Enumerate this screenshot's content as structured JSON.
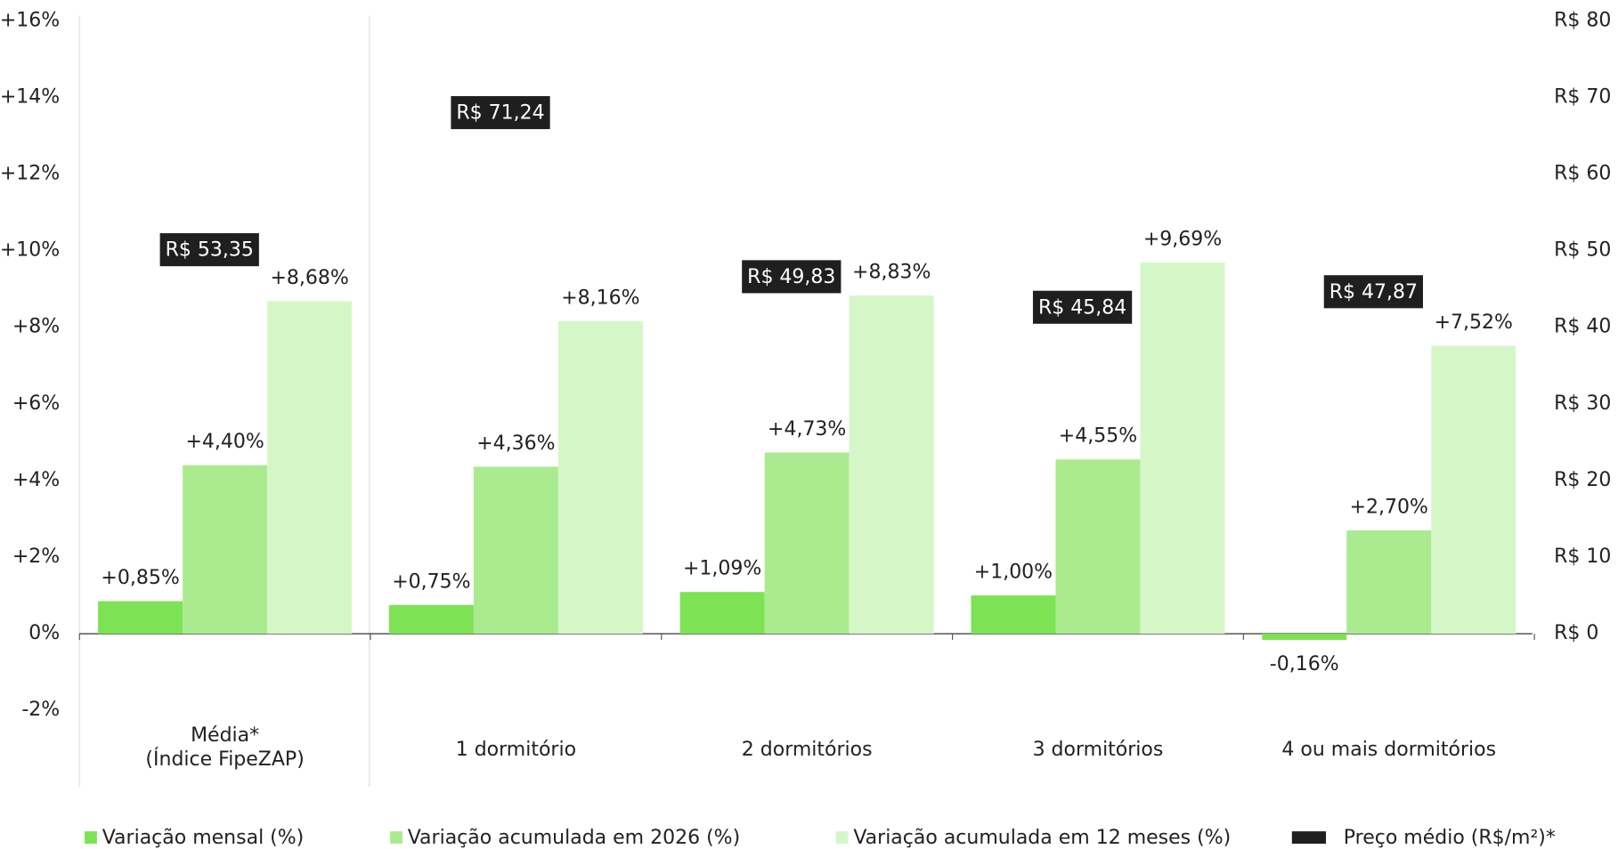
{
  "chart_data": {
    "type": "bar",
    "categories": [
      "Média*\n(Índice FipeZAP)",
      "1 dormitório",
      "2 dormitórios",
      "3 dormitórios",
      "4 ou mais dormitórios"
    ],
    "series": [
      {
        "name": "Variação mensal (%)",
        "color": "#7de354",
        "values": [
          0.85,
          0.75,
          1.09,
          1.0,
          -0.16
        ],
        "value_labels": [
          "+0,85%",
          "+0,75%",
          "+1,09%",
          "+1,00%",
          "-0,16%"
        ]
      },
      {
        "name": "Variação acumulada em 2026 (%)",
        "color": "#abeb90",
        "values": [
          4.4,
          4.36,
          4.73,
          4.55,
          2.7
        ],
        "value_labels": [
          "+4,40%",
          "+4,36%",
          "+4,73%",
          "+4,55%",
          "+2,70%"
        ]
      },
      {
        "name": "Variação acumulada em 12 meses (%)",
        "color": "#d5f7c8",
        "values": [
          8.68,
          8.16,
          8.83,
          9.69,
          7.52
        ],
        "value_labels": [
          "+8,68%",
          "+8,16%",
          "+8,83%",
          "+9,69%",
          "+7,52%"
        ]
      },
      {
        "name": "Preço médio (R$/m²)*",
        "color": "#1f1f1f",
        "axis": "y2",
        "values": [
          53.35,
          71.24,
          49.83,
          45.84,
          47.87
        ],
        "value_labels": [
          "R$ 53,35",
          "R$ 71,24",
          "R$ 49,83",
          "R$ 45,84",
          "R$ 47,87"
        ]
      }
    ],
    "ylim": [
      -4,
      16
    ],
    "yticks": [
      {
        "value": -2,
        "label": "-2%"
      },
      {
        "value": 0,
        "label": "0%"
      },
      {
        "value": 2,
        "label": "+2%"
      },
      {
        "value": 4,
        "label": "+4%"
      },
      {
        "value": 6,
        "label": "+6%"
      },
      {
        "value": 8,
        "label": "+8%"
      },
      {
        "value": 10,
        "label": "+10%"
      },
      {
        "value": 12,
        "label": "+12%"
      },
      {
        "value": 14,
        "label": "+14%"
      },
      {
        "value": 16,
        "label": "+16%"
      }
    ],
    "y2lim": [
      -20,
      80
    ],
    "y2ticks": [
      {
        "value": 0,
        "label": "R$ 0"
      },
      {
        "value": 10,
        "label": "R$ 10"
      },
      {
        "value": 20,
        "label": "R$ 20"
      },
      {
        "value": 30,
        "label": "R$ 30"
      },
      {
        "value": 40,
        "label": "R$ 40"
      },
      {
        "value": 50,
        "label": "R$ 50"
      },
      {
        "value": 60,
        "label": "R$ 60"
      },
      {
        "value": 70,
        "label": "R$ 70"
      },
      {
        "value": 80,
        "label": "R$ 80"
      }
    ]
  }
}
